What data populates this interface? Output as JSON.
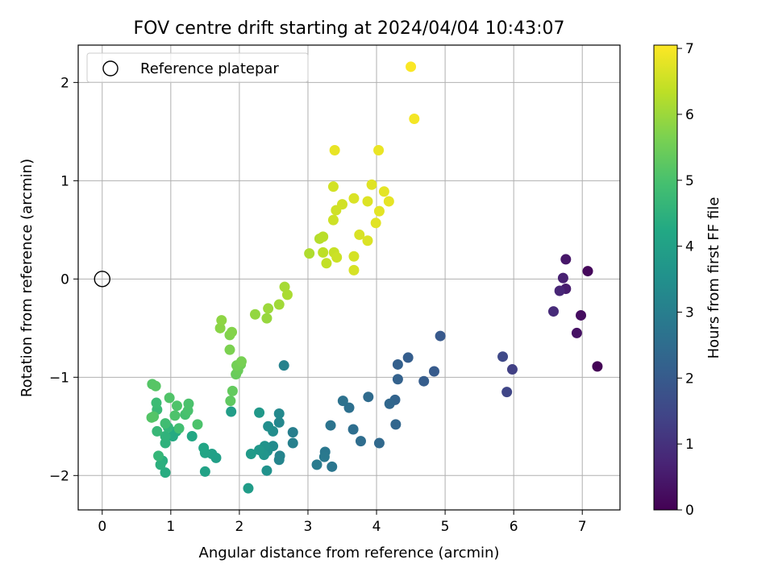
{
  "chart_data": {
    "type": "scatter",
    "title": "FOV centre drift starting at 2024/04/04 10:43:07",
    "xlabel": "Angular distance from reference (arcmin)",
    "ylabel": "Rotation from reference (arcmin)",
    "xlim": [
      -0.35,
      7.55
    ],
    "ylim": [
      -2.35,
      2.38
    ],
    "xticks": [
      "0",
      "1",
      "2",
      "3",
      "4",
      "5",
      "6",
      "7"
    ],
    "yticks": [
      "−2",
      "−1",
      "0",
      "1",
      "2"
    ],
    "grid": true,
    "legend": {
      "placement": "upper-left",
      "entries": [
        "Reference platepar"
      ]
    },
    "reference_point": {
      "x": 0,
      "y": 0
    },
    "colorbar": {
      "label": "Hours from first FF file",
      "range": [
        0,
        7.05
      ],
      "ticks": [
        "0",
        "1",
        "2",
        "3",
        "4",
        "5",
        "6",
        "7"
      ],
      "colormap": "viridis"
    },
    "points": [
      {
        "x": 7.22,
        "y": -0.89,
        "h": 0.05
      },
      {
        "x": 7.08,
        "y": 0.08,
        "h": 0.15
      },
      {
        "x": 6.98,
        "y": -0.37,
        "h": 0.25
      },
      {
        "x": 6.92,
        "y": -0.55,
        "h": 0.35
      },
      {
        "x": 6.76,
        "y": 0.2,
        "h": 0.45
      },
      {
        "x": 6.76,
        "y": -0.1,
        "h": 0.55
      },
      {
        "x": 6.72,
        "y": 0.01,
        "h": 0.65
      },
      {
        "x": 6.67,
        "y": -0.12,
        "h": 0.75
      },
      {
        "x": 6.58,
        "y": -0.33,
        "h": 0.85
      },
      {
        "x": 5.98,
        "y": -0.92,
        "h": 1.35
      },
      {
        "x": 5.9,
        "y": -1.15,
        "h": 1.45
      },
      {
        "x": 5.84,
        "y": -0.79,
        "h": 1.55
      },
      {
        "x": 4.93,
        "y": -0.58,
        "h": 1.95
      },
      {
        "x": 4.84,
        "y": -0.94,
        "h": 2.0
      },
      {
        "x": 4.69,
        "y": -1.04,
        "h": 2.05
      },
      {
        "x": 4.46,
        "y": -0.8,
        "h": 2.1
      },
      {
        "x": 4.31,
        "y": -0.87,
        "h": 2.15
      },
      {
        "x": 4.31,
        "y": -1.02,
        "h": 2.2
      },
      {
        "x": 4.27,
        "y": -1.23,
        "h": 2.25
      },
      {
        "x": 4.28,
        "y": -1.48,
        "h": 2.3
      },
      {
        "x": 4.19,
        "y": -1.27,
        "h": 2.35
      },
      {
        "x": 4.04,
        "y": -1.67,
        "h": 2.4
      },
      {
        "x": 3.88,
        "y": -1.2,
        "h": 2.45
      },
      {
        "x": 3.77,
        "y": -1.65,
        "h": 2.5
      },
      {
        "x": 3.66,
        "y": -1.53,
        "h": 2.55
      },
      {
        "x": 3.6,
        "y": -1.31,
        "h": 2.6
      },
      {
        "x": 3.51,
        "y": -1.24,
        "h": 2.65
      },
      {
        "x": 3.33,
        "y": -1.49,
        "h": 2.7
      },
      {
        "x": 3.35,
        "y": -1.91,
        "h": 2.75
      },
      {
        "x": 3.25,
        "y": -1.76,
        "h": 2.8
      },
      {
        "x": 3.24,
        "y": -1.81,
        "h": 2.85
      },
      {
        "x": 3.13,
        "y": -1.89,
        "h": 2.9
      },
      {
        "x": 2.78,
        "y": -1.56,
        "h": 3.0
      },
      {
        "x": 2.78,
        "y": -1.67,
        "h": 3.05
      },
      {
        "x": 2.65,
        "y": -0.88,
        "h": 3.1
      },
      {
        "x": 2.59,
        "y": -1.8,
        "h": 3.15
      },
      {
        "x": 2.58,
        "y": -1.84,
        "h": 3.2
      },
      {
        "x": 2.58,
        "y": -1.46,
        "h": 3.25
      },
      {
        "x": 2.58,
        "y": -1.37,
        "h": 3.3
      },
      {
        "x": 2.49,
        "y": -1.7,
        "h": 3.35
      },
      {
        "x": 2.49,
        "y": -1.55,
        "h": 3.4
      },
      {
        "x": 2.42,
        "y": -1.5,
        "h": 3.45
      },
      {
        "x": 2.41,
        "y": -1.75,
        "h": 3.5
      },
      {
        "x": 2.4,
        "y": -1.95,
        "h": 3.55
      },
      {
        "x": 2.37,
        "y": -1.7,
        "h": 3.6
      },
      {
        "x": 2.36,
        "y": -1.79,
        "h": 3.65
      },
      {
        "x": 2.29,
        "y": -1.74,
        "h": 3.7
      },
      {
        "x": 2.29,
        "y": -1.36,
        "h": 3.75
      },
      {
        "x": 2.17,
        "y": -1.78,
        "h": 3.8
      },
      {
        "x": 2.13,
        "y": -2.13,
        "h": 3.85
      },
      {
        "x": 1.88,
        "y": -1.35,
        "h": 3.9
      },
      {
        "x": 1.66,
        "y": -1.82,
        "h": 3.95
      },
      {
        "x": 1.6,
        "y": -1.78,
        "h": 4.0
      },
      {
        "x": 1.5,
        "y": -1.96,
        "h": 4.05
      },
      {
        "x": 1.5,
        "y": -1.77,
        "h": 4.1
      },
      {
        "x": 1.48,
        "y": -1.72,
        "h": 4.15
      },
      {
        "x": 1.31,
        "y": -1.6,
        "h": 4.2
      },
      {
        "x": 1.08,
        "y": -1.55,
        "h": 4.25
      },
      {
        "x": 1.03,
        "y": -1.6,
        "h": 4.3
      },
      {
        "x": 0.92,
        "y": -1.97,
        "h": 4.35
      },
      {
        "x": 0.88,
        "y": -1.85,
        "h": 4.4
      },
      {
        "x": 0.85,
        "y": -1.89,
        "h": 4.45
      },
      {
        "x": 0.92,
        "y": -1.67,
        "h": 4.5
      },
      {
        "x": 0.92,
        "y": -1.6,
        "h": 4.55
      },
      {
        "x": 0.96,
        "y": -1.51,
        "h": 4.6
      },
      {
        "x": 0.82,
        "y": -1.8,
        "h": 4.65
      },
      {
        "x": 0.8,
        "y": -1.55,
        "h": 4.7
      },
      {
        "x": 0.8,
        "y": -1.33,
        "h": 4.75
      },
      {
        "x": 0.79,
        "y": -1.26,
        "h": 4.8
      },
      {
        "x": 0.92,
        "y": -1.47,
        "h": 4.85
      },
      {
        "x": 1.12,
        "y": -1.52,
        "h": 4.9
      },
      {
        "x": 1.21,
        "y": -1.38,
        "h": 4.95
      },
      {
        "x": 1.25,
        "y": -1.34,
        "h": 5.0
      },
      {
        "x": 1.26,
        "y": -1.27,
        "h": 5.02
      },
      {
        "x": 1.39,
        "y": -1.48,
        "h": 5.04
      },
      {
        "x": 1.06,
        "y": -1.39,
        "h": 5.06
      },
      {
        "x": 1.09,
        "y": -1.29,
        "h": 5.08
      },
      {
        "x": 0.98,
        "y": -1.21,
        "h": 5.1
      },
      {
        "x": 0.75,
        "y": -1.4,
        "h": 5.12
      },
      {
        "x": 0.72,
        "y": -1.41,
        "h": 5.14
      },
      {
        "x": 0.73,
        "y": -1.07,
        "h": 5.16
      },
      {
        "x": 0.78,
        "y": -1.09,
        "h": 5.18
      },
      {
        "x": 1.87,
        "y": -1.24,
        "h": 5.3
      },
      {
        "x": 1.9,
        "y": -1.14,
        "h": 5.35
      },
      {
        "x": 1.95,
        "y": -0.97,
        "h": 5.4
      },
      {
        "x": 1.98,
        "y": -0.93,
        "h": 5.45
      },
      {
        "x": 2.02,
        "y": -0.87,
        "h": 5.5
      },
      {
        "x": 1.96,
        "y": -0.88,
        "h": 5.55
      },
      {
        "x": 2.03,
        "y": -0.84,
        "h": 5.6
      },
      {
        "x": 1.86,
        "y": -0.72,
        "h": 5.65
      },
      {
        "x": 1.86,
        "y": -0.57,
        "h": 5.7
      },
      {
        "x": 1.89,
        "y": -0.54,
        "h": 5.75
      },
      {
        "x": 1.72,
        "y": -0.5,
        "h": 5.8
      },
      {
        "x": 1.74,
        "y": -0.42,
        "h": 5.85
      },
      {
        "x": 2.23,
        "y": -0.36,
        "h": 5.9
      },
      {
        "x": 2.4,
        "y": -0.4,
        "h": 5.95
      },
      {
        "x": 2.42,
        "y": -0.3,
        "h": 6.0
      },
      {
        "x": 2.58,
        "y": -0.26,
        "h": 6.05
      },
      {
        "x": 2.66,
        "y": -0.08,
        "h": 6.1
      },
      {
        "x": 2.7,
        "y": -0.16,
        "h": 6.15
      },
      {
        "x": 3.02,
        "y": 0.26,
        "h": 6.2
      },
      {
        "x": 3.17,
        "y": 0.41,
        "h": 6.25
      },
      {
        "x": 3.22,
        "y": 0.43,
        "h": 6.3
      },
      {
        "x": 3.22,
        "y": 0.27,
        "h": 6.35
      },
      {
        "x": 3.27,
        "y": 0.16,
        "h": 6.4
      },
      {
        "x": 3.38,
        "y": 0.27,
        "h": 6.45
      },
      {
        "x": 3.42,
        "y": 0.22,
        "h": 6.5
      },
      {
        "x": 3.37,
        "y": 0.6,
        "h": 6.52
      },
      {
        "x": 3.41,
        "y": 0.7,
        "h": 6.54
      },
      {
        "x": 3.5,
        "y": 0.76,
        "h": 6.56
      },
      {
        "x": 3.37,
        "y": 0.94,
        "h": 6.58
      },
      {
        "x": 3.67,
        "y": 0.23,
        "h": 6.6
      },
      {
        "x": 3.67,
        "y": 0.09,
        "h": 6.62
      },
      {
        "x": 3.75,
        "y": 0.45,
        "h": 6.64
      },
      {
        "x": 3.67,
        "y": 0.82,
        "h": 6.66
      },
      {
        "x": 3.87,
        "y": 0.39,
        "h": 6.68
      },
      {
        "x": 3.87,
        "y": 0.79,
        "h": 6.7
      },
      {
        "x": 3.93,
        "y": 0.96,
        "h": 6.72
      },
      {
        "x": 3.99,
        "y": 0.57,
        "h": 6.74
      },
      {
        "x": 4.04,
        "y": 0.69,
        "h": 6.76
      },
      {
        "x": 4.11,
        "y": 0.89,
        "h": 6.78
      },
      {
        "x": 4.18,
        "y": 0.79,
        "h": 6.8
      },
      {
        "x": 3.39,
        "y": 1.31,
        "h": 6.82
      },
      {
        "x": 4.03,
        "y": 1.31,
        "h": 6.84
      },
      {
        "x": 4.55,
        "y": 1.63,
        "h": 6.95
      },
      {
        "x": 4.5,
        "y": 2.16,
        "h": 7.02
      }
    ]
  }
}
